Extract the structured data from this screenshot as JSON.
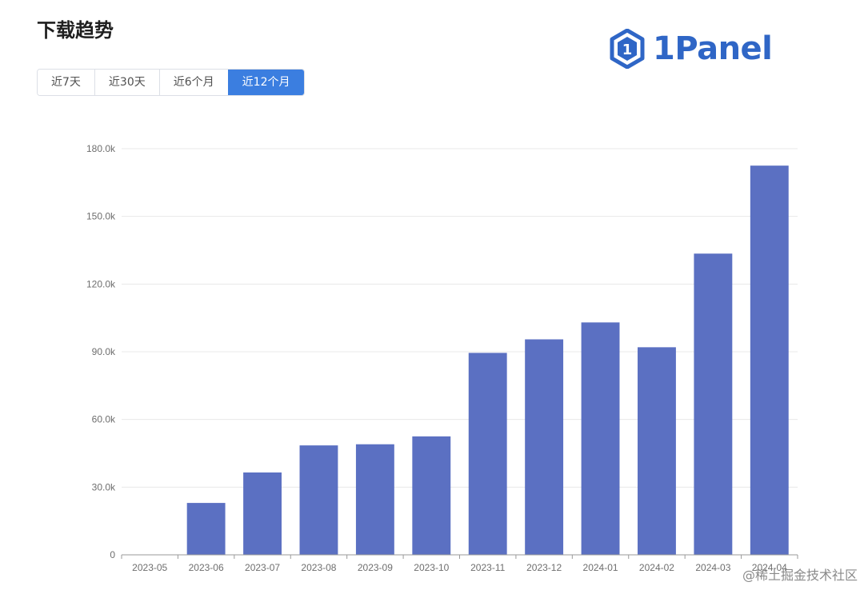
{
  "header": {
    "title": "下载趋势"
  },
  "tabs": [
    {
      "label": "近7天",
      "active": false
    },
    {
      "label": "近30天",
      "active": false
    },
    {
      "label": "近6个月",
      "active": false
    },
    {
      "label": "近12个月",
      "active": true
    }
  ],
  "logo": {
    "text": "1Panel",
    "color": "#2f66c6"
  },
  "watermark": "@稀土掘金技术社区",
  "chart_data": {
    "type": "bar",
    "title": "",
    "xlabel": "",
    "ylabel": "",
    "categories": [
      "2023-05",
      "2023-06",
      "2023-07",
      "2023-08",
      "2023-09",
      "2023-10",
      "2023-11",
      "2023-12",
      "2024-01",
      "2024-02",
      "2024-03",
      "2024-04"
    ],
    "values": [
      0,
      23000,
      36500,
      48500,
      49000,
      52500,
      89500,
      95500,
      103000,
      92000,
      133500,
      172500
    ],
    "ylim": [
      0,
      180000
    ],
    "yticks": [
      0,
      30000,
      60000,
      90000,
      120000,
      150000,
      180000
    ],
    "ytick_labels": [
      "0",
      "30.0k",
      "60.0k",
      "90.0k",
      "120.0k",
      "150.0k",
      "180.0k"
    ],
    "bar_color": "#5b70c2",
    "grid": true,
    "legend": "none"
  }
}
